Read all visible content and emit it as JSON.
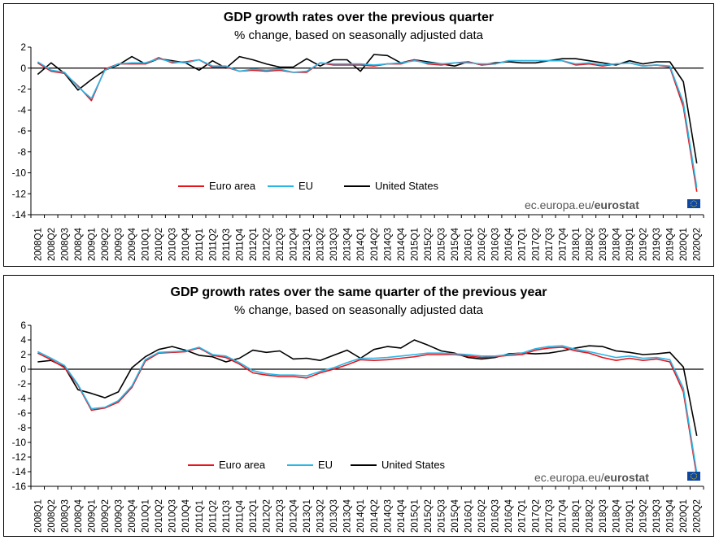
{
  "colors": {
    "euro_area": "#e8141b",
    "eu": "#29b6e6",
    "united_states": "#000000"
  },
  "chart_data": [
    {
      "type": "line",
      "title": "GDP growth rates over the previous quarter",
      "subtitle": "% change, based on seasonally adjusted data",
      "source": "ec.europa.eu/",
      "source_bold": "eurostat",
      "xlabel": "",
      "ylabel": "",
      "ylim": [
        -14,
        2
      ],
      "yticks": [
        2,
        0,
        -2,
        -4,
        -6,
        -8,
        -10,
        -12,
        -14
      ],
      "grid": false,
      "legend": "bottom-left",
      "x": [
        "2008Q1",
        "2008Q2",
        "2008Q3",
        "2008Q4",
        "2009Q1",
        "2009Q2",
        "2009Q3",
        "2009Q4",
        "2010Q1",
        "2010Q2",
        "2010Q3",
        "2010Q4",
        "2011Q1",
        "2011Q2",
        "2011Q3",
        "2011Q4",
        "2012Q1",
        "2012Q2",
        "2012Q3",
        "2012Q4",
        "2013Q1",
        "2013Q2",
        "2013Q3",
        "2013Q4",
        "2014Q1",
        "2014Q2",
        "2014Q3",
        "2014Q4",
        "2015Q1",
        "2015Q2",
        "2015Q3",
        "2015Q4",
        "2016Q1",
        "2016Q2",
        "2016Q3",
        "2016Q4",
        "2017Q1",
        "2017Q2",
        "2017Q3",
        "2017Q4",
        "2018Q1",
        "2018Q2",
        "2018Q3",
        "2018Q4",
        "2019Q1",
        "2019Q2",
        "2019Q3",
        "2019Q4",
        "2020Q1",
        "2020Q2"
      ],
      "series": [
        {
          "name": "Euro area",
          "color_key": "euro_area",
          "values": [
            0.5,
            -0.3,
            -0.5,
            -1.7,
            -3.1,
            -0.1,
            0.4,
            0.4,
            0.4,
            1.0,
            0.5,
            0.6,
            0.8,
            0.1,
            0.1,
            -0.3,
            -0.2,
            -0.3,
            -0.2,
            -0.4,
            -0.4,
            0.5,
            0.3,
            0.3,
            0.3,
            0.2,
            0.4,
            0.4,
            0.8,
            0.4,
            0.3,
            0.5,
            0.6,
            0.3,
            0.4,
            0.7,
            0.7,
            0.7,
            0.7,
            0.7,
            0.3,
            0.4,
            0.2,
            0.4,
            0.5,
            0.2,
            0.3,
            0.1,
            -3.7,
            -11.8
          ]
        },
        {
          "name": "EU",
          "color_key": "eu",
          "values": [
            0.6,
            -0.2,
            -0.4,
            -1.8,
            -2.9,
            -0.2,
            0.4,
            0.5,
            0.5,
            0.9,
            0.6,
            0.5,
            0.8,
            0.2,
            0.2,
            -0.3,
            -0.1,
            -0.2,
            -0.1,
            -0.4,
            -0.3,
            0.5,
            0.4,
            0.4,
            0.4,
            0.3,
            0.4,
            0.5,
            0.7,
            0.5,
            0.4,
            0.5,
            0.5,
            0.4,
            0.4,
            0.7,
            0.7,
            0.7,
            0.7,
            0.7,
            0.4,
            0.5,
            0.3,
            0.4,
            0.5,
            0.2,
            0.3,
            0.2,
            -3.3,
            -11.4
          ]
        },
        {
          "name": "United States",
          "color_key": "united_states",
          "values": [
            -0.6,
            0.5,
            -0.5,
            -2.1,
            -1.1,
            -0.2,
            0.3,
            1.1,
            0.4,
            0.9,
            0.7,
            0.5,
            -0.2,
            0.7,
            0.0,
            1.1,
            0.8,
            0.4,
            0.1,
            0.1,
            0.9,
            0.2,
            0.8,
            0.8,
            -0.3,
            1.3,
            1.2,
            0.5,
            0.8,
            0.6,
            0.4,
            0.2,
            0.6,
            0.3,
            0.5,
            0.6,
            0.5,
            0.5,
            0.7,
            0.9,
            0.9,
            0.7,
            0.5,
            0.3,
            0.7,
            0.4,
            0.6,
            0.6,
            -1.3,
            -9.1
          ]
        }
      ]
    },
    {
      "type": "line",
      "title": "GDP growth rates over the same quarter of the previous year",
      "subtitle": "% change, based on seasonally adjusted data",
      "source": "ec.europa.eu/",
      "source_bold": "eurostat",
      "xlabel": "",
      "ylabel": "",
      "ylim": [
        -16,
        6
      ],
      "yticks": [
        6,
        4,
        2,
        0,
        -2,
        -4,
        -6,
        -8,
        -10,
        -12,
        -14,
        -16
      ],
      "grid": false,
      "legend": "bottom-left",
      "x": [
        "2008Q1",
        "2008Q2",
        "2008Q3",
        "2008Q4",
        "2009Q1",
        "2009Q2",
        "2009Q3",
        "2009Q4",
        "2010Q1",
        "2010Q2",
        "2010Q3",
        "2010Q4",
        "2011Q1",
        "2011Q2",
        "2011Q3",
        "2011Q4",
        "2012Q1",
        "2012Q2",
        "2012Q3",
        "2012Q4",
        "2013Q1",
        "2013Q2",
        "2013Q3",
        "2013Q4",
        "2014Q1",
        "2014Q2",
        "2014Q3",
        "2014Q4",
        "2015Q1",
        "2015Q2",
        "2015Q3",
        "2015Q4",
        "2016Q1",
        "2016Q2",
        "2016Q3",
        "2016Q4",
        "2017Q1",
        "2017Q2",
        "2017Q3",
        "2017Q4",
        "2018Q1",
        "2018Q2",
        "2018Q3",
        "2018Q4",
        "2019Q1",
        "2019Q2",
        "2019Q3",
        "2019Q4",
        "2020Q1",
        "2020Q2"
      ],
      "series": [
        {
          "name": "Euro area",
          "color_key": "euro_area",
          "values": [
            2.2,
            1.3,
            0.2,
            -2.2,
            -5.6,
            -5.3,
            -4.5,
            -2.5,
            1.1,
            2.2,
            2.3,
            2.4,
            2.9,
            1.9,
            1.6,
            0.7,
            -0.5,
            -0.8,
            -1.0,
            -1.0,
            -1.2,
            -0.5,
            0.0,
            0.6,
            1.3,
            1.2,
            1.3,
            1.5,
            1.7,
            2.0,
            2.0,
            2.0,
            1.8,
            1.6,
            1.7,
            1.9,
            2.0,
            2.6,
            2.9,
            3.0,
            2.5,
            2.2,
            1.6,
            1.2,
            1.5,
            1.2,
            1.4,
            1.0,
            -3.1,
            -14.7
          ]
        },
        {
          "name": "EU",
          "color_key": "eu",
          "values": [
            2.4,
            1.5,
            0.5,
            -2.1,
            -5.4,
            -5.2,
            -4.3,
            -2.3,
            1.3,
            2.3,
            2.4,
            2.5,
            3.0,
            2.0,
            1.8,
            0.9,
            -0.2,
            -0.6,
            -0.8,
            -0.8,
            -0.9,
            -0.3,
            0.2,
            0.9,
            1.5,
            1.5,
            1.6,
            1.8,
            2.0,
            2.2,
            2.2,
            2.1,
            2.0,
            1.8,
            1.8,
            2.0,
            2.2,
            2.8,
            3.1,
            3.2,
            2.7,
            2.4,
            2.0,
            1.6,
            1.8,
            1.5,
            1.6,
            1.3,
            -2.6,
            -14.2
          ]
        },
        {
          "name": "United States",
          "color_key": "united_states",
          "values": [
            1.0,
            1.2,
            0.3,
            -2.8,
            -3.3,
            -3.9,
            -3.1,
            0.2,
            1.7,
            2.7,
            3.1,
            2.6,
            1.9,
            1.7,
            1.0,
            1.5,
            2.6,
            2.3,
            2.5,
            1.4,
            1.5,
            1.2,
            1.9,
            2.6,
            1.5,
            2.7,
            3.1,
            2.9,
            4.0,
            3.3,
            2.5,
            2.2,
            1.6,
            1.4,
            1.6,
            2.1,
            2.2,
            2.1,
            2.2,
            2.5,
            2.9,
            3.2,
            3.1,
            2.5,
            2.3,
            2.0,
            2.1,
            2.3,
            0.3,
            -9.1
          ]
        }
      ]
    }
  ]
}
